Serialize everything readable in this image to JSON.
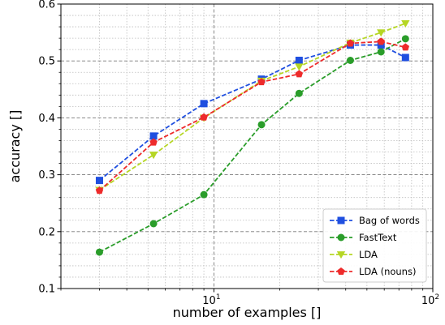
{
  "chart_data": {
    "type": "line",
    "xscale": "log",
    "xlim": [
      2,
      100
    ],
    "ylim": [
      0.1,
      0.6
    ],
    "xlabel": "number of examples []",
    "ylabel": "accuracy []",
    "x_ticks": [
      {
        "value": 10,
        "base": "10",
        "exp": "1"
      },
      {
        "value": 100,
        "base": "10",
        "exp": "2"
      }
    ],
    "y_ticks": [
      "0.1",
      "0.2",
      "0.3",
      "0.4",
      "0.5",
      "0.6"
    ],
    "grid": true,
    "legend_position": "bottom-right",
    "x": [
      3,
      5.3,
      9,
      16.5,
      24.5,
      42,
      58,
      75
    ],
    "series": [
      {
        "name": "Bag of words",
        "color": "#1f4fe0",
        "marker": "square",
        "values": [
          0.29,
          0.368,
          0.425,
          0.468,
          0.501,
          0.528,
          0.528,
          0.506
        ]
      },
      {
        "name": "FastText",
        "color": "#2a9d2a",
        "marker": "circle",
        "values": [
          0.164,
          0.214,
          0.265,
          0.388,
          0.443,
          0.501,
          0.516,
          0.539
        ]
      },
      {
        "name": "LDA",
        "color": "#b5d624",
        "marker": "triangle-down",
        "values": [
          0.273,
          0.335,
          0.4,
          0.465,
          0.49,
          0.532,
          0.55,
          0.566
        ]
      },
      {
        "name": "LDA (nouns)",
        "color": "#ee2b2b",
        "marker": "pentagon",
        "values": [
          0.272,
          0.357,
          0.401,
          0.463,
          0.477,
          0.531,
          0.534,
          0.524
        ]
      }
    ]
  }
}
